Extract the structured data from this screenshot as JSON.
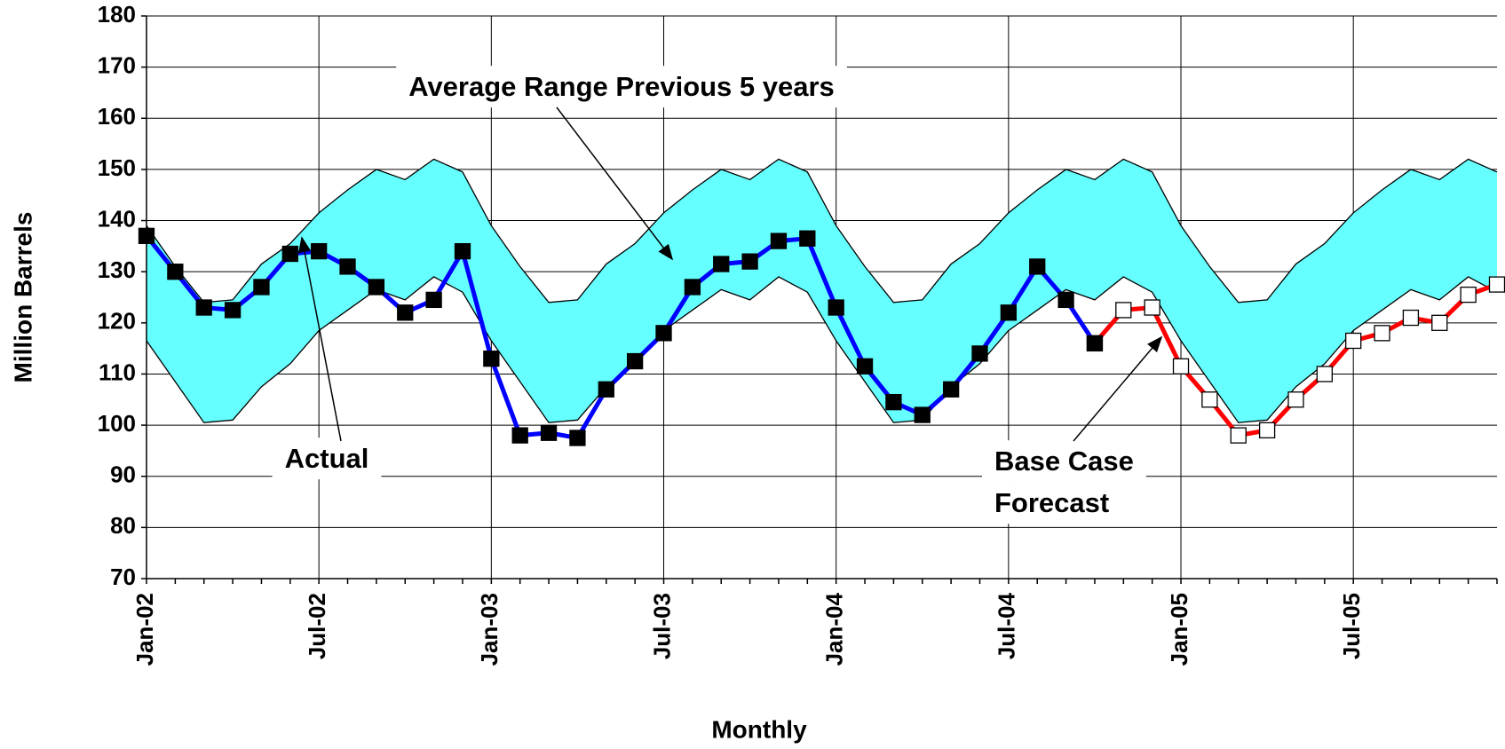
{
  "chart_data": {
    "type": "line",
    "x_label": "Monthly",
    "y_label": "Million Barrels",
    "categories": [
      "Jan-02",
      null,
      null,
      null,
      null,
      null,
      "Jul-02",
      null,
      null,
      null,
      null,
      null,
      "Jan-03",
      null,
      null,
      null,
      null,
      null,
      "Jul-03",
      null,
      null,
      null,
      null,
      null,
      "Jan-04",
      null,
      null,
      null,
      null,
      null,
      "Jul-04",
      null,
      null,
      null,
      null,
      null,
      "Jan-05",
      null,
      null,
      null,
      null,
      null,
      "Jul-05",
      null,
      null,
      null,
      null,
      null
    ],
    "ylim": [
      70,
      180
    ],
    "yticks": [
      70,
      80,
      90,
      100,
      110,
      120,
      130,
      140,
      150,
      160,
      170,
      180
    ],
    "grid": true,
    "band": {
      "color": "#66ffff",
      "upper": [
        139,
        131,
        124,
        124.5,
        131.5,
        135.5,
        141.5,
        146,
        150,
        148,
        152,
        149.5,
        139,
        131,
        124,
        124.5,
        131.5,
        135.5,
        141.5,
        146,
        150,
        148,
        152,
        149.5,
        139,
        131,
        124,
        124.5,
        131.5,
        135.5,
        141.5,
        146,
        150,
        148,
        152,
        149.5,
        139,
        131,
        124,
        124.5,
        131.5,
        135.5,
        141.5,
        146,
        150,
        148,
        152,
        149.5
      ],
      "lower": [
        116.5,
        108.5,
        100.5,
        101,
        107.5,
        112,
        118.5,
        122.5,
        126.5,
        124.5,
        129,
        126,
        116.5,
        108.5,
        100.5,
        101,
        107.5,
        112,
        118.5,
        122.5,
        126.5,
        124.5,
        129,
        126,
        116.5,
        108.5,
        100.5,
        101,
        107.5,
        112,
        118.5,
        122.5,
        126.5,
        124.5,
        129,
        126,
        116.5,
        108.5,
        100.5,
        101,
        107.5,
        112,
        118.5,
        122.5,
        126.5,
        124.5,
        129,
        126
      ]
    },
    "series": [
      {
        "name": "Base Case Forecast",
        "color": "#ff0000",
        "marker": "open",
        "values": [
          null,
          null,
          null,
          null,
          null,
          null,
          null,
          null,
          null,
          null,
          null,
          null,
          null,
          null,
          null,
          null,
          null,
          null,
          null,
          null,
          null,
          null,
          null,
          null,
          null,
          null,
          null,
          null,
          null,
          null,
          null,
          null,
          null,
          116,
          122.5,
          123,
          111.5,
          105,
          98,
          99,
          105,
          110,
          116.5,
          118,
          121,
          120,
          125.5,
          127.5
        ]
      },
      {
        "name": "Actual",
        "color": "#0000ff",
        "marker": "filled",
        "values": [
          137,
          130,
          123,
          122.5,
          127,
          133.5,
          134,
          131,
          127,
          122,
          124.5,
          134,
          113,
          98,
          98.5,
          97.5,
          107,
          112.5,
          118,
          127,
          131.5,
          132,
          136,
          136.5,
          123,
          111.5,
          104.5,
          102,
          107,
          114,
          122,
          131,
          124.5,
          116,
          null,
          null,
          null,
          null,
          null,
          null,
          null,
          null,
          null,
          null,
          null,
          null,
          null,
          null
        ]
      }
    ],
    "annotations": [
      "Average Range Previous 5 years",
      "Actual",
      "Base Case",
      "Forecast"
    ]
  }
}
